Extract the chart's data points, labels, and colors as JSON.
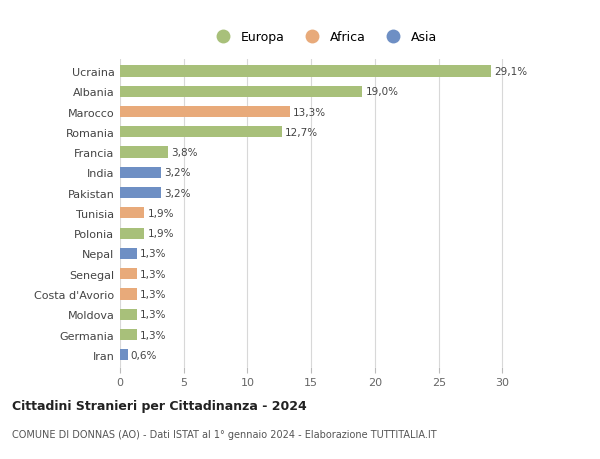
{
  "countries": [
    "Ucraina",
    "Albania",
    "Marocco",
    "Romania",
    "Francia",
    "India",
    "Pakistan",
    "Tunisia",
    "Polonia",
    "Nepal",
    "Senegal",
    "Costa d'Avorio",
    "Moldova",
    "Germania",
    "Iran"
  ],
  "values": [
    29.1,
    19.0,
    13.3,
    12.7,
    3.8,
    3.2,
    3.2,
    1.9,
    1.9,
    1.3,
    1.3,
    1.3,
    1.3,
    1.3,
    0.6
  ],
  "labels": [
    "29,1%",
    "19,0%",
    "13,3%",
    "12,7%",
    "3,8%",
    "3,2%",
    "3,2%",
    "1,9%",
    "1,9%",
    "1,3%",
    "1,3%",
    "1,3%",
    "1,3%",
    "1,3%",
    "0,6%"
  ],
  "continents": [
    "Europa",
    "Europa",
    "Africa",
    "Europa",
    "Europa",
    "Asia",
    "Asia",
    "Africa",
    "Europa",
    "Asia",
    "Africa",
    "Africa",
    "Europa",
    "Europa",
    "Asia"
  ],
  "colors": {
    "Europa": "#a8c07a",
    "Africa": "#e8aa7a",
    "Asia": "#6e8fc4"
  },
  "title": "Cittadini Stranieri per Cittadinanza - 2024",
  "subtitle": "COMUNE DI DONNAS (AO) - Dati ISTAT al 1° gennaio 2024 - Elaborazione TUTTITALIA.IT",
  "xlim": [
    0,
    32
  ],
  "xticks": [
    0,
    5,
    10,
    15,
    20,
    25,
    30
  ],
  "background_color": "#ffffff",
  "grid_color": "#d8d8d8",
  "bar_height": 0.55
}
